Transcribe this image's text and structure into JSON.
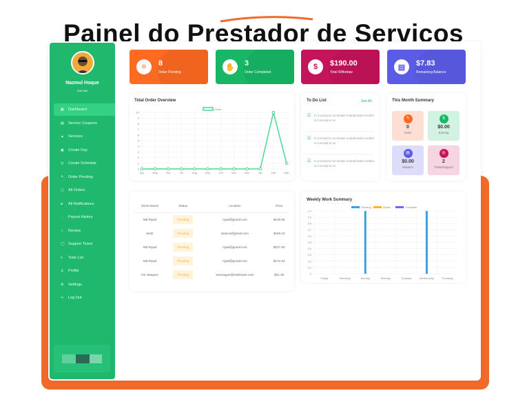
{
  "banner": {
    "title": "Painel do Prestador de Serviços"
  },
  "user": {
    "name": "Nazmul Hoque",
    "visit": "Visit Site"
  },
  "sidebar": {
    "items": [
      {
        "label": "Dashboard",
        "icon": "grid-icon",
        "active": true
      },
      {
        "label": "Service Coupons",
        "icon": "coupon-icon"
      },
      {
        "label": "Services",
        "icon": "services-icon"
      },
      {
        "label": "Create Day",
        "icon": "calendar-icon"
      },
      {
        "label": "Create Schedule",
        "icon": "clock-icon"
      },
      {
        "label": "Order Pending",
        "icon": "pending-icon"
      },
      {
        "label": "All Orders",
        "icon": "orders-icon"
      },
      {
        "label": "All Notifications",
        "icon": "bell-icon"
      },
      {
        "label": "Payout History",
        "icon": "history-icon"
      },
      {
        "label": "Review",
        "icon": "star-icon"
      },
      {
        "label": "Support Ticket",
        "icon": "ticket-icon"
      },
      {
        "label": "Todo List",
        "icon": "list-icon"
      },
      {
        "label": "Profile",
        "icon": "user-icon"
      },
      {
        "label": "Settings",
        "icon": "gear-icon"
      },
      {
        "label": "Log Out",
        "icon": "logout-icon"
      }
    ]
  },
  "stats": [
    {
      "value": "8",
      "label": "Order Pending",
      "color": "#fd6a22",
      "icon": "list-icon"
    },
    {
      "value": "3",
      "label": "Order Completed",
      "color": "#17b766",
      "icon": "handshake-icon"
    },
    {
      "value": "$190.00",
      "label": "Total Withdraw",
      "color": "#c4145a",
      "icon": "dollar-icon"
    },
    {
      "value": "$7.83",
      "label": "Remaining Balance",
      "color": "#5b5ce6",
      "icon": "invoice-icon"
    }
  ],
  "todo": {
    "title": "To Do List",
    "see_all": "See All",
    "items": [
      "In it except to so temper mutual tastes mother in it except to so",
      "In it except to so temper mutual tastes mother in it except to so",
      "In it except to so temper mutual tastes mother in it except to so"
    ]
  },
  "summary": {
    "title": "This Month Summary",
    "items": [
      {
        "value": "0",
        "label": "Order",
        "bg": "#fde0d3",
        "color": "#fd6a22"
      },
      {
        "value": "$0.00",
        "label": "Earning",
        "bg": "#d3f3e2",
        "color": "#17b766"
      },
      {
        "value": "$0.00",
        "label": "Balance",
        "bg": "#dedcfb",
        "color": "#5b5ce6"
      },
      {
        "value": "2",
        "label": "Ticket/Support",
        "bg": "#f6d4e2",
        "color": "#c4145a"
      }
    ]
  },
  "orders_table": {
    "headers": [
      "Client Name",
      "Status",
      "Location",
      "Price"
    ],
    "rows": [
      [
        "Md Riyad",
        "Pending",
        "riyad@gmail.com",
        "$149.80"
      ],
      [
        "test2",
        "Pending",
        "www.w@gmail.com",
        "$246.10"
      ],
      [
        "Md Riyad",
        "Pending",
        "riyad@gmail.com",
        "$227.93"
      ],
      [
        "Md Riyad",
        "Pending",
        "riyad@gmail.com",
        "$173.34"
      ],
      [
        "Iris Vasquez",
        "Pending",
        "suruvagas@mailinator.com",
        "$21.28"
      ]
    ]
  },
  "chart_data": [
    {
      "type": "line",
      "title": "Total Order Overview",
      "categories": [
        "Apr",
        "May",
        "Jun",
        "Jul",
        "Aug",
        "Sep",
        "Oct",
        "Nov",
        "Dec",
        "Jan",
        "Feb",
        "Mar"
      ],
      "series": [
        {
          "name": "Order",
          "values": [
            0,
            0,
            0,
            0,
            0,
            0,
            0,
            0,
            0,
            0,
            10,
            1
          ],
          "color": "#4cd68f"
        }
      ],
      "ylim": [
        0,
        10
      ],
      "yticks": [
        0,
        1,
        2,
        3,
        4,
        5,
        6,
        7,
        8,
        9,
        10
      ],
      "grid": true,
      "legend": "top"
    },
    {
      "type": "bar",
      "title": "Weekly Work Summary",
      "categories": [
        "Friday",
        "Saturday",
        "Sunday",
        "Monday",
        "Tuesday",
        "Wednesday",
        "Thursday"
      ],
      "series": [
        {
          "name": "Pending",
          "values": [
            0,
            0,
            1,
            0,
            0,
            1,
            0
          ],
          "color": "#3ba1e0"
        },
        {
          "name": "Active",
          "values": [
            0,
            0,
            0,
            0,
            0,
            0,
            0
          ],
          "color": "#f7b52c"
        },
        {
          "name": "Complete",
          "values": [
            0,
            0,
            0,
            0,
            0,
            0,
            0
          ],
          "color": "#6f63f6"
        }
      ],
      "ylim": [
        0,
        1
      ],
      "yticks": [
        "0",
        "0.1",
        "0.2",
        "0.3",
        "0.4",
        "0.5",
        "0.6",
        "0.7",
        "0.8",
        "0.9",
        "1.0"
      ],
      "grid": true,
      "legend": "top"
    }
  ]
}
